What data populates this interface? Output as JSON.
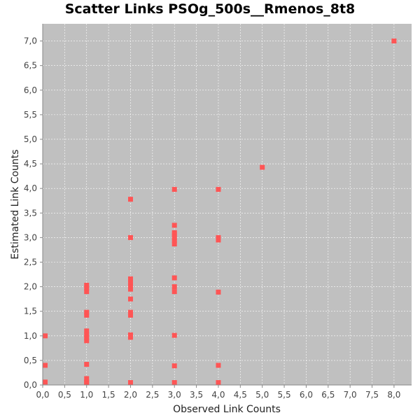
{
  "chart_data": {
    "type": "scatter",
    "title": "Scatter Links PSOg_500s__Rmenos_8t8",
    "xlabel": "Observed Link Counts",
    "ylabel": "Estimated Link Counts",
    "xlim": [
      0,
      8.4
    ],
    "ylim": [
      0,
      7.35
    ],
    "grid": true,
    "x_ticks": [
      "0,0",
      "0,5",
      "1,0",
      "1,5",
      "2,0",
      "2,5",
      "3,0",
      "3,5",
      "4,0",
      "4,5",
      "5,0",
      "5,5",
      "6,0",
      "6,5",
      "7,0",
      "7,5",
      "8,0"
    ],
    "y_ticks": [
      "0,0",
      "0,5",
      "1,0",
      "1,5",
      "2,0",
      "2,5",
      "3,0",
      "3,5",
      "4,0",
      "4,5",
      "5,0",
      "5,5",
      "6,0",
      "6,5",
      "7,0"
    ],
    "colors": {
      "plot_background": "#c0c0c0",
      "point": "#ff5555",
      "grid": "#ffffff"
    },
    "points": [
      {
        "x": 0,
        "y": 0.06
      },
      {
        "x": 0,
        "y": 0.4
      },
      {
        "x": 0,
        "y": 1.0
      },
      {
        "x": 1,
        "y": 0.01
      },
      {
        "x": 1,
        "y": 0.06
      },
      {
        "x": 1,
        "y": 0.13
      },
      {
        "x": 1,
        "y": 0.42
      },
      {
        "x": 1,
        "y": 0.9
      },
      {
        "x": 1,
        "y": 0.96
      },
      {
        "x": 1,
        "y": 1.02
      },
      {
        "x": 1,
        "y": 1.1
      },
      {
        "x": 1,
        "y": 1.42
      },
      {
        "x": 1,
        "y": 1.48
      },
      {
        "x": 1,
        "y": 1.9
      },
      {
        "x": 1,
        "y": 1.97
      },
      {
        "x": 1,
        "y": 2.03
      },
      {
        "x": 2,
        "y": 0.01
      },
      {
        "x": 2,
        "y": 0.97
      },
      {
        "x": 2,
        "y": 1.02
      },
      {
        "x": 2,
        "y": 1.42
      },
      {
        "x": 2,
        "y": 1.48
      },
      {
        "x": 2,
        "y": 1.75
      },
      {
        "x": 2,
        "y": 1.95
      },
      {
        "x": 2,
        "y": 2.02
      },
      {
        "x": 2,
        "y": 2.09
      },
      {
        "x": 2,
        "y": 2.16
      },
      {
        "x": 2,
        "y": 3.0
      },
      {
        "x": 2,
        "y": 3.78
      },
      {
        "x": 3,
        "y": 0.02
      },
      {
        "x": 3,
        "y": 0.39
      },
      {
        "x": 3,
        "y": 1.01
      },
      {
        "x": 3,
        "y": 1.9
      },
      {
        "x": 3,
        "y": 2.0
      },
      {
        "x": 3,
        "y": 2.18
      },
      {
        "x": 3,
        "y": 2.87
      },
      {
        "x": 3,
        "y": 2.94
      },
      {
        "x": 3,
        "y": 3.0
      },
      {
        "x": 3,
        "y": 3.06
      },
      {
        "x": 3,
        "y": 3.1
      },
      {
        "x": 3,
        "y": 3.25
      },
      {
        "x": 3,
        "y": 3.98
      },
      {
        "x": 4,
        "y": 0.02
      },
      {
        "x": 4,
        "y": 0.4
      },
      {
        "x": 4,
        "y": 1.89
      },
      {
        "x": 4,
        "y": 2.95
      },
      {
        "x": 4,
        "y": 3.0
      },
      {
        "x": 4,
        "y": 3.98
      },
      {
        "x": 5,
        "y": 4.43
      },
      {
        "x": 8,
        "y": 7.0
      }
    ]
  }
}
